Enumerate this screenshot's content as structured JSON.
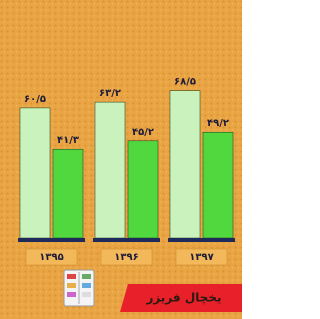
{
  "chart_data": {
    "type": "bar",
    "title": "یخچال فریزر",
    "categories": [
      "۱۳۹۵",
      "۱۳۹۶",
      "۱۳۹۷"
    ],
    "series": [
      {
        "color": "#c9f2bd",
        "values": [
          60.5,
          63.2,
          68.5
        ],
        "value_labels": [
          "۶۰/۵",
          "۶۳/۲",
          "۶۸/۵"
        ]
      },
      {
        "color": "#52d83f",
        "values": [
          41.3,
          45.2,
          49.2
        ],
        "value_labels": [
          "۴۱/۳",
          "۴۵/۲",
          "۴۹/۲"
        ]
      }
    ]
  }
}
